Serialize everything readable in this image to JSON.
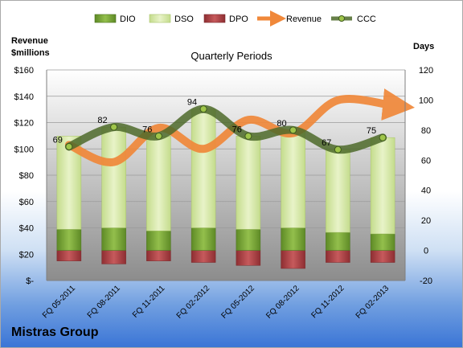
{
  "chart_data": {
    "type": "bar",
    "title": "Quarterly Periods",
    "company": "Mistras Group",
    "y_left_title_line1": "Revenue",
    "y_left_title_line2": "$millions",
    "y_right_title": "Days",
    "y_left_ticks": [
      "$160",
      "$140",
      "$120",
      "$100",
      "$80",
      "$60",
      "$40",
      "$20",
      "$-"
    ],
    "y_left_range": [
      0,
      160
    ],
    "y_right_ticks": [
      "120",
      "100",
      "80",
      "60",
      "40",
      "20",
      "0",
      "-20"
    ],
    "y_right_range": [
      -20,
      120
    ],
    "legend_position": "top",
    "categories": [
      "FQ 05-2011",
      "FQ 08-2011",
      "FQ 11-2011",
      "FQ 02-2012",
      "FQ 05-2012",
      "FQ 08-2012",
      "FQ 11-2012",
      "FQ 02-2013"
    ],
    "series": [
      {
        "name": "DIO",
        "axis": "right",
        "color": "#6f9a2f",
        "values": [
          14,
          15,
          13,
          15,
          14,
          15,
          12,
          11
        ]
      },
      {
        "name": "DSO",
        "axis": "right",
        "color": "#d6e8a6",
        "values": [
          62,
          67,
          63,
          79,
          62,
          65,
          55,
          64
        ]
      },
      {
        "name": "DPO",
        "axis": "right",
        "color": "#b0474a",
        "values": [
          -7,
          -9,
          -7,
          -8,
          -10,
          -12,
          -8,
          -8
        ]
      },
      {
        "name": "Revenue",
        "axis": "left",
        "color": "#f0883a",
        "values": [
          103,
          90,
          116,
          100,
          122,
          112,
          137,
          133
        ]
      },
      {
        "name": "CCC",
        "axis": "right",
        "color": "#4d6a2a",
        "values": [
          69,
          82,
          76,
          94,
          76,
          80,
          67,
          75
        ]
      }
    ],
    "ccc_labels": [
      "69",
      "82",
      "76",
      "94",
      "76",
      "80",
      "67",
      "75"
    ],
    "grid": true
  }
}
